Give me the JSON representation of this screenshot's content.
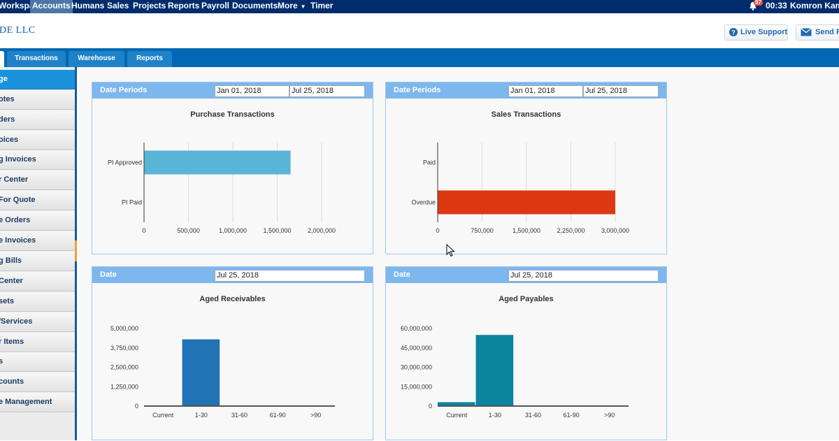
{
  "topnav": {
    "items": [
      "Workspace",
      "Accounts",
      "Humans",
      "Sales",
      "Projects",
      "Reports",
      "Payroll",
      "Documents",
      "More",
      "Timer"
    ],
    "active": "Accounts",
    "notification_count": "97",
    "time": "00:33",
    "user": "Komron Kamalov"
  },
  "header": {
    "company": "DE LLC",
    "live_support": "Live Support",
    "send_feedback": "Send Feedback"
  },
  "tabs": [
    "Transactions",
    "Warehouse",
    "Reports"
  ],
  "sidebar": {
    "items": [
      "ge",
      "otes",
      "ders",
      "oices",
      "g Invoices",
      "r Center",
      "For Quote",
      "e Orders",
      "e Invoices",
      "g Bills",
      "Center",
      "sets",
      "/Services",
      "r Items",
      "s",
      "counts",
      "e Management"
    ]
  },
  "panels": {
    "purchase": {
      "header": "Date Periods",
      "date_from": "Jan 01, 2018",
      "date_to": "Jul 25, 2018",
      "title": "Purchase Transactions"
    },
    "sales": {
      "header": "Date Periods",
      "date_from": "Jan 01, 2018",
      "date_to": "Jul 25, 2018",
      "title": "Sales Transactions"
    },
    "receivables": {
      "header": "Date",
      "date": "Jul 25, 2018",
      "title": "Aged Receivables"
    },
    "payables": {
      "header": "Date",
      "date": "Jul 25, 2018",
      "title": "Aged Payables"
    }
  },
  "chart_data": [
    {
      "type": "bar",
      "orientation": "horizontal",
      "title": "Purchase Transactions",
      "categories": [
        "PI Approved",
        "PI Paid"
      ],
      "values": [
        1650000,
        0
      ],
      "xlim": [
        0,
        2000000
      ],
      "xticks": [
        "0",
        "500,000",
        "1,000,000",
        "1,500,000",
        "2,000,000"
      ],
      "color": "#5ab4d6",
      "grid": true
    },
    {
      "type": "bar",
      "orientation": "horizontal",
      "title": "Sales Transactions",
      "categories": [
        "Paid",
        "Overdue"
      ],
      "values": [
        0,
        3000000
      ],
      "xlim": [
        0,
        3000000
      ],
      "xticks": [
        "0",
        "750,000",
        "1,500,000",
        "2,250,000",
        "3,000,000"
      ],
      "color": "#dc3912",
      "grid": true
    },
    {
      "type": "bar",
      "orientation": "vertical",
      "title": "Aged Receivables",
      "categories": [
        "Current",
        "1-30",
        "31-60",
        "61-90",
        ">90"
      ],
      "values": [
        0,
        4300000,
        0,
        0,
        0
      ],
      "ylim": [
        0,
        5000000
      ],
      "yticks": [
        "0",
        "1,250,000",
        "2,500,000",
        "3,750,000",
        "5,000,000"
      ],
      "color": "#2073b5",
      "grid": false
    },
    {
      "type": "bar",
      "orientation": "vertical",
      "title": "Aged Payables",
      "categories": [
        "Current",
        "1-30",
        "31-60",
        "61-90",
        ">90"
      ],
      "values": [
        3000000,
        55000000,
        0,
        0,
        0
      ],
      "ylim": [
        0,
        60000000
      ],
      "yticks": [
        "0",
        "15,000,000",
        "30,000,000",
        "45,000,000",
        "60,000,000"
      ],
      "color": "#0a839e",
      "grid": false
    }
  ]
}
